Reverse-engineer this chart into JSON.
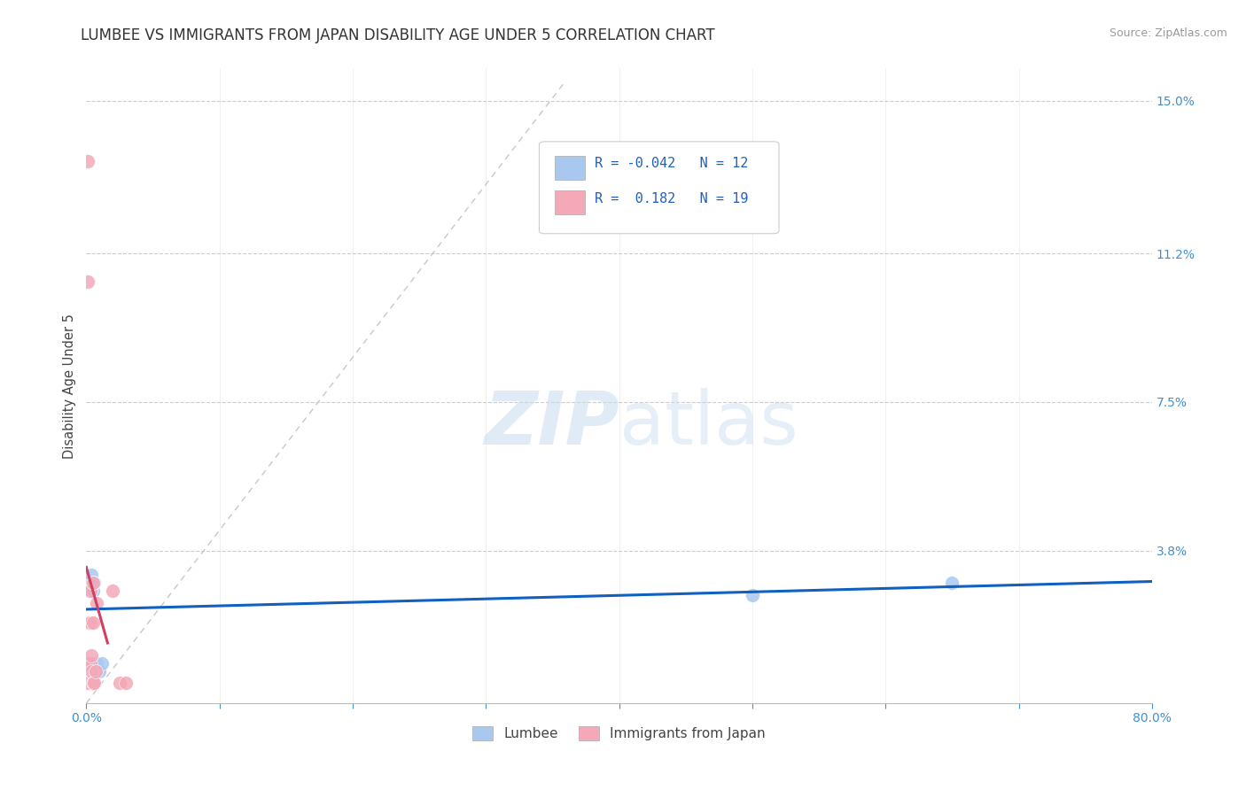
{
  "title": "LUMBEE VS IMMIGRANTS FROM JAPAN DISABILITY AGE UNDER 5 CORRELATION CHART",
  "source": "Source: ZipAtlas.com",
  "ylabel": "Disability Age Under 5",
  "xlim": [
    0.0,
    0.8
  ],
  "ylim": [
    0.0,
    0.158
  ],
  "ytick_vals": [
    0.038,
    0.075,
    0.112,
    0.15
  ],
  "ytick_labels": [
    "3.8%",
    "7.5%",
    "11.2%",
    "15.0%"
  ],
  "xticks": [
    0.0,
    0.1,
    0.2,
    0.3,
    0.4,
    0.5,
    0.6,
    0.7,
    0.8
  ],
  "xtick_labels": [
    "0.0%",
    "",
    "",
    "",
    "",
    "",
    "",
    "",
    "80.0%"
  ],
  "lumbee_color": "#A8C8F0",
  "japan_color": "#F4A8B8",
  "lumbee_line_color": "#1060C0",
  "japan_line_color": "#D04060",
  "diagonal_line_color": "#C8C8C8",
  "watermark_color": "#C8DCF0",
  "lumbee_x": [
    0.001,
    0.002,
    0.002,
    0.003,
    0.004,
    0.005,
    0.006,
    0.008,
    0.01,
    0.012,
    0.5,
    0.65
  ],
  "lumbee_y": [
    0.03,
    0.03,
    0.028,
    0.028,
    0.032,
    0.028,
    0.03,
    0.01,
    0.008,
    0.01,
    0.027,
    0.03
  ],
  "japan_x": [
    0.001,
    0.001,
    0.001,
    0.002,
    0.002,
    0.003,
    0.003,
    0.003,
    0.004,
    0.004,
    0.005,
    0.005,
    0.005,
    0.006,
    0.007,
    0.008,
    0.02,
    0.025,
    0.03
  ],
  "japan_y": [
    0.135,
    0.105,
    0.005,
    0.02,
    0.01,
    0.028,
    0.02,
    0.01,
    0.008,
    0.012,
    0.03,
    0.02,
    0.005,
    0.005,
    0.008,
    0.025,
    0.028,
    0.005,
    0.005
  ],
  "background_color": "#FFFFFF",
  "grid_color": "#C8D8E8",
  "title_fontsize": 12,
  "axis_fontsize": 10.5,
  "right_axis_color": "#4090D0"
}
